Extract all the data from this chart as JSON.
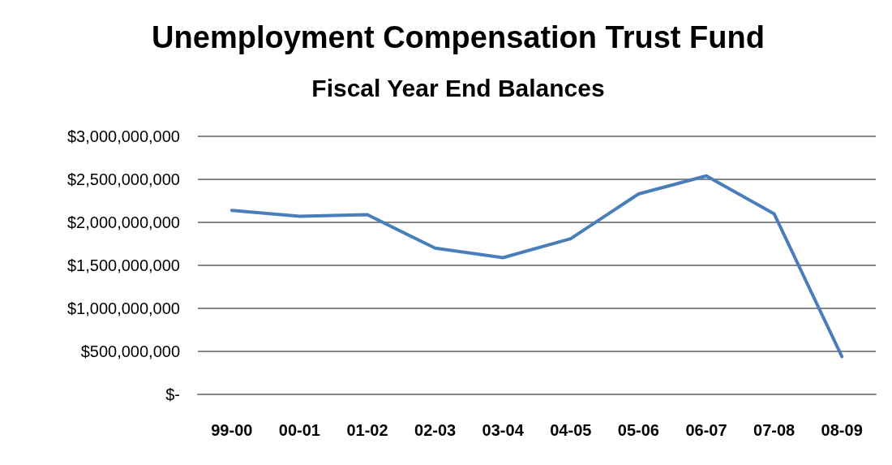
{
  "chart_data": {
    "type": "line",
    "title": "Unemployment Compensation Trust Fund",
    "subtitle": "Fiscal Year End Balances",
    "categories": [
      "99-00",
      "00-01",
      "01-02",
      "02-03",
      "03-04",
      "04-05",
      "05-06",
      "06-07",
      "07-08",
      "08-09"
    ],
    "series": [
      {
        "color": "#4a7ebb",
        "values": [
          2140000000,
          2070000000,
          2090000000,
          1700000000,
          1590000000,
          1810000000,
          2330000000,
          2540000000,
          2100000000,
          440000000
        ]
      }
    ],
    "ylim": [
      0,
      3000000000
    ],
    "yticks": [
      {
        "value": 0,
        "label": "$-"
      },
      {
        "value": 500000000,
        "label": "$500,000,000"
      },
      {
        "value": 1000000000,
        "label": "$1,000,000,000"
      },
      {
        "value": 1500000000,
        "label": "$1,500,000,000"
      },
      {
        "value": 2000000000,
        "label": "$2,000,000,000"
      },
      {
        "value": 2500000000,
        "label": "$2,500,000,000"
      },
      {
        "value": 3000000000,
        "label": "$3,000,000,000"
      }
    ],
    "grid": "y",
    "marker": "none",
    "line_style": "solid"
  }
}
